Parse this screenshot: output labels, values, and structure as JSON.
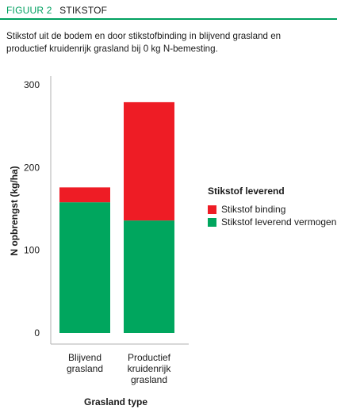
{
  "header": {
    "figure_label": "FIGUUR 2",
    "figure_title": "STIKSTOF",
    "subtitle": "Stikstof uit de bodem en door stikstofbinding in blijvend grasland en productief kruidenrijk grasland bij 0 kg N-bemesting."
  },
  "colors": {
    "accent": "#00a060",
    "binding": "#ee1c25",
    "vermogen": "#00a65e"
  },
  "chart_data": {
    "type": "bar",
    "stacked": true,
    "categories": [
      [
        "Blijvend",
        "grasland"
      ],
      [
        "Productief",
        "kruidenrijk",
        "grasland"
      ]
    ],
    "series": [
      {
        "name": "Stikstof leverend vermogen",
        "values": [
          158,
          136
        ],
        "color": "#00a65e"
      },
      {
        "name": "Stikstof binding",
        "values": [
          18,
          143
        ],
        "color": "#ee1c25"
      }
    ],
    "xlabel": "Grasland type",
    "ylabel": "N opbrengst (kg/ha)",
    "ylim": [
      0,
      300
    ],
    "yticks": [
      0,
      100,
      200,
      300
    ],
    "legend_title": "Stikstof leverend",
    "legend": [
      "Stikstof binding",
      "Stikstof leverend vermogen"
    ],
    "legend_position": "right"
  }
}
